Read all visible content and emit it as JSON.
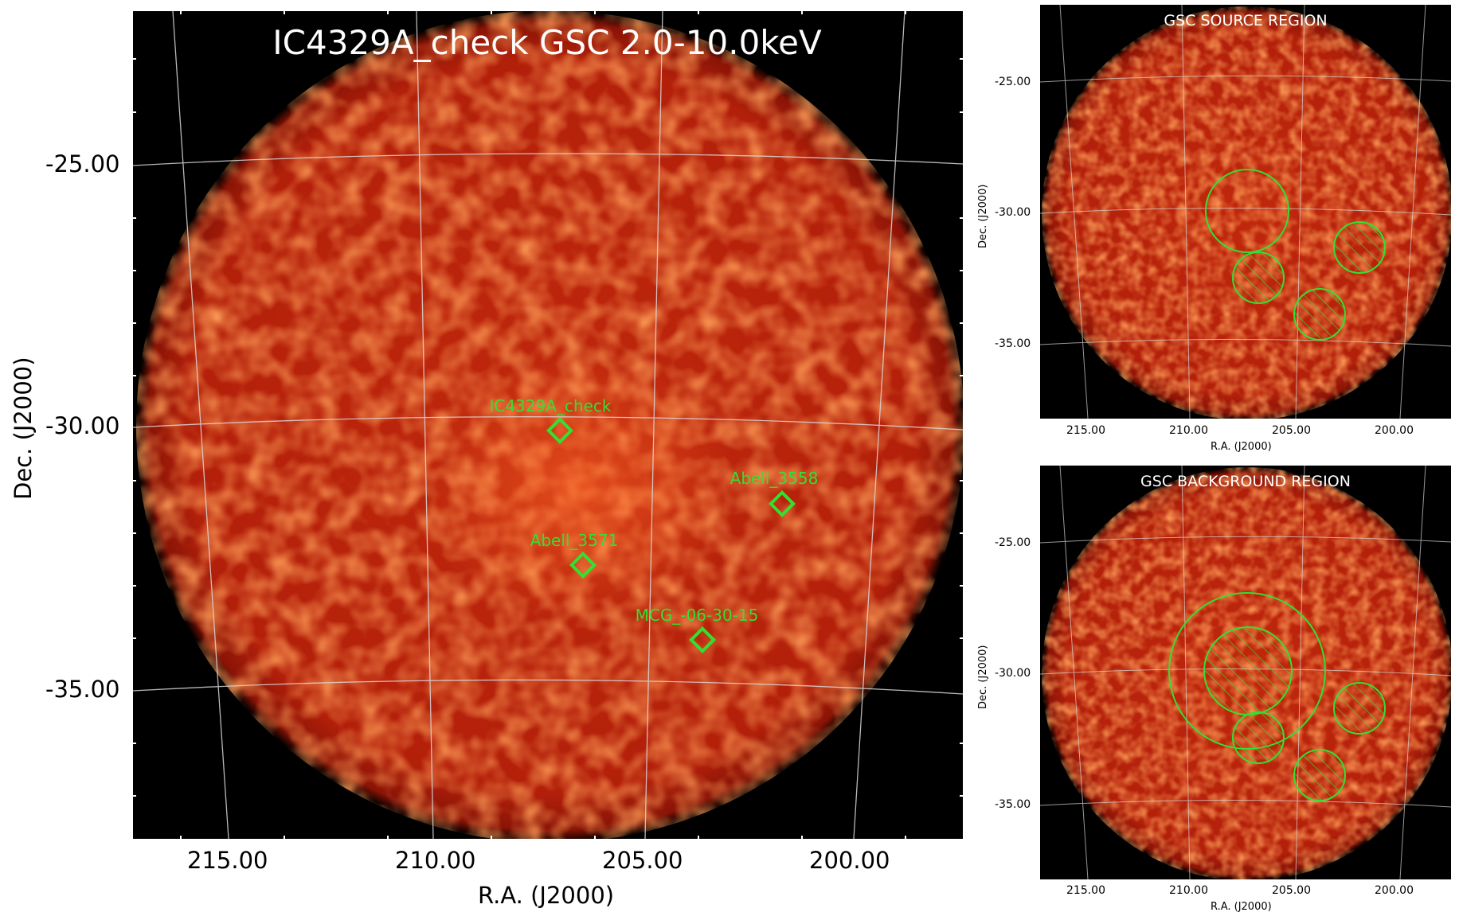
{
  "main": {
    "title": "IC4329A_check GSC 2.0-10.0keV",
    "xlabel": "R.A. (J2000)",
    "ylabel": "Dec. (J2000)",
    "xticks": [
      "215.00",
      "210.00",
      "205.00",
      "200.00"
    ],
    "yticks": [
      "-25.00",
      "-30.00",
      "-35.00"
    ],
    "sources": [
      {
        "name": "IC4329A_check",
        "ra": 207.3,
        "dec": -30.0
      },
      {
        "name": "Abell_3558",
        "ra": 201.9,
        "dec": -31.4
      },
      {
        "name": "Abell_3571",
        "ra": 206.7,
        "dec": -32.6
      },
      {
        "name": "MCG_-06-30-15",
        "ra": 203.9,
        "dec": -34.0
      }
    ]
  },
  "source_region": {
    "title": "GSC SOURCE REGION",
    "xlabel": "R.A. (J2000)",
    "ylabel": "Dec. (J2000)",
    "xticks": [
      "215.00",
      "210.00",
      "205.00",
      "200.00"
    ],
    "yticks": [
      "-25.00",
      "-30.00",
      "-35.00"
    ]
  },
  "background_region": {
    "title": "GSC BACKGROUND REGION",
    "xlabel": "R.A. (J2000)",
    "ylabel": "Dec. (J2000)",
    "xticks": [
      "215.00",
      "210.00",
      "205.00",
      "200.00"
    ],
    "yticks": [
      "-25.00",
      "-30.00",
      "-35.00"
    ]
  },
  "colors": {
    "map_base": "#b8200a",
    "map_hot": "#ff5a20",
    "region_green": "#33e030",
    "grid": "#d8d8d8",
    "label_green": "#33e030"
  }
}
